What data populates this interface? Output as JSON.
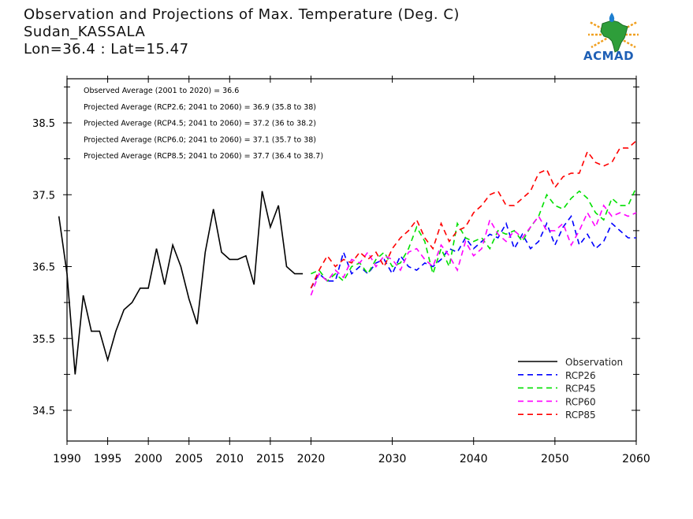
{
  "header": {
    "title": "Observation and Projections of Max. Temperature (Deg. C)",
    "location": "Sudan_KASSALA",
    "coords": "Lon=36.4 : Lat=15.47"
  },
  "logo": {
    "text": "ACMAD"
  },
  "colors": {
    "Observation": "#000000",
    "RCP26": "#0000ff",
    "RCP45": "#00e000",
    "RCP60": "#ff00ff",
    "RCP85": "#ff0000"
  },
  "chart_data": {
    "type": "line",
    "title": "Observation and Projections of Max. Temperature (Deg. C)",
    "xlim": [
      1989,
      2060
    ],
    "ylim": [
      34.1,
      39.3
    ],
    "x_ticks": [
      {
        "value": 1990,
        "label": "1990"
      },
      {
        "value": 1995,
        "label": "1995"
      },
      {
        "value": 2000,
        "label": "2000"
      },
      {
        "value": 2005,
        "label": "2005"
      },
      {
        "value": 2010,
        "label": "2010"
      },
      {
        "value": 2015,
        "label": "2015"
      },
      {
        "value": 2020,
        "label": "2020"
      },
      {
        "value": 2030,
        "label": "2030"
      },
      {
        "value": 2040,
        "label": "2040"
      },
      {
        "value": 2050,
        "label": "2050"
      },
      {
        "value": 2060,
        "label": "2060"
      }
    ],
    "y_ticks": [
      {
        "value": 34.5,
        "label": "34.5"
      },
      {
        "value": 35.5,
        "label": "35.5"
      },
      {
        "value": 36.5,
        "label": "36.5"
      },
      {
        "value": 37.5,
        "label": "37.5"
      },
      {
        "value": 38.5,
        "label": "38.5"
      }
    ],
    "annotations": [
      "Observed Average (2001 to 2020) = 36.6",
      "Projected Average (RCP2.6; 2041 to 2060) = 36.9 (35.8 to 38)",
      "Projected Average (RCP4.5; 2041 to 2060) = 37.2 (36 to 38.2)",
      "Projected Average (RCP6.0; 2041 to 2060) = 37.1 (35.7 to 38)",
      "Projected Average (RCP8.5; 2041 to 2060) = 37.7 (36.4 to 38.7)"
    ],
    "legend_position": "bottom-right",
    "series": [
      {
        "name": "Observation",
        "style": "solid",
        "x": [
          1989,
          1990,
          1991,
          1992,
          1993,
          1994,
          1995,
          1996,
          1997,
          1998,
          1999,
          2000,
          2001,
          2002,
          2003,
          2004,
          2005,
          2006,
          2007,
          2008,
          2009,
          2010,
          2011,
          2012,
          2013,
          2014,
          2015,
          2016,
          2017,
          2018,
          2019
        ],
        "y": [
          37.2,
          36.4,
          35.0,
          36.1,
          35.6,
          35.6,
          35.2,
          35.6,
          35.9,
          36.0,
          36.2,
          36.2,
          36.75,
          36.25,
          36.8,
          36.5,
          36.05,
          35.7,
          36.7,
          37.3,
          36.7,
          36.6,
          36.6,
          36.65,
          36.25,
          37.55,
          37.05,
          37.35,
          36.5,
          36.4,
          36.4
        ]
      },
      {
        "name": "RCP26",
        "style": "dashed",
        "x": [
          2020,
          2021,
          2022,
          2023,
          2024,
          2025,
          2026,
          2027,
          2028,
          2029,
          2030,
          2031,
          2032,
          2033,
          2034,
          2035,
          2036,
          2037,
          2038,
          2039,
          2040,
          2041,
          2042,
          2043,
          2044,
          2045,
          2046,
          2047,
          2048,
          2049,
          2050,
          2051,
          2052,
          2053,
          2054,
          2055,
          2056,
          2057,
          2058,
          2059,
          2060
        ],
        "y": [
          36.2,
          36.4,
          36.3,
          36.3,
          36.7,
          36.4,
          36.5,
          36.4,
          36.55,
          36.6,
          36.4,
          36.65,
          36.5,
          36.45,
          36.55,
          36.5,
          36.6,
          36.75,
          36.7,
          36.9,
          36.75,
          36.85,
          36.95,
          36.9,
          37.1,
          36.75,
          36.95,
          36.75,
          36.85,
          37.1,
          36.8,
          37.05,
          37.2,
          36.8,
          36.95,
          36.75,
          36.85,
          37.1,
          37.0,
          36.9,
          36.9
        ]
      },
      {
        "name": "RCP45",
        "style": "dashed",
        "x": [
          2020,
          2021,
          2022,
          2023,
          2024,
          2025,
          2026,
          2027,
          2028,
          2029,
          2030,
          2031,
          2032,
          2033,
          2034,
          2035,
          2036,
          2037,
          2038,
          2039,
          2040,
          2041,
          2042,
          2043,
          2044,
          2045,
          2046,
          2047,
          2048,
          2049,
          2050,
          2051,
          2052,
          2053,
          2054,
          2055,
          2056,
          2057,
          2058,
          2059,
          2060
        ],
        "y": [
          36.4,
          36.45,
          36.3,
          36.4,
          36.3,
          36.5,
          36.55,
          36.4,
          36.6,
          36.7,
          36.5,
          36.55,
          36.75,
          37.05,
          36.85,
          36.4,
          36.75,
          36.5,
          37.1,
          36.9,
          36.85,
          36.9,
          36.75,
          37.0,
          36.95,
          37.0,
          36.85,
          37.05,
          37.2,
          37.5,
          37.35,
          37.3,
          37.45,
          37.55,
          37.45,
          37.25,
          37.15,
          37.45,
          37.35,
          37.35,
          37.6
        ]
      },
      {
        "name": "RCP60",
        "style": "dashed",
        "x": [
          2020,
          2021,
          2022,
          2023,
          2024,
          2025,
          2026,
          2027,
          2028,
          2029,
          2030,
          2031,
          2032,
          2033,
          2034,
          2035,
          2036,
          2037,
          2038,
          2039,
          2040,
          2041,
          2042,
          2043,
          2044,
          2045,
          2046,
          2047,
          2048,
          2049,
          2050,
          2051,
          2052,
          2053,
          2054,
          2055,
          2056,
          2057,
          2058,
          2059,
          2060
        ],
        "y": [
          36.1,
          36.4,
          36.3,
          36.45,
          36.35,
          36.6,
          36.55,
          36.7,
          36.5,
          36.65,
          36.6,
          36.45,
          36.7,
          36.75,
          36.6,
          36.5,
          36.8,
          36.65,
          36.45,
          36.85,
          36.65,
          36.75,
          37.15,
          36.95,
          36.85,
          37.0,
          36.9,
          37.05,
          37.2,
          37.0,
          37.0,
          37.1,
          36.8,
          37.0,
          37.25,
          37.05,
          37.35,
          37.2,
          37.25,
          37.2,
          37.25
        ]
      },
      {
        "name": "RCP85",
        "style": "dashed",
        "x": [
          2020,
          2021,
          2022,
          2023,
          2024,
          2025,
          2026,
          2027,
          2028,
          2029,
          2030,
          2031,
          2032,
          2033,
          2034,
          2035,
          2036,
          2037,
          2038,
          2039,
          2040,
          2041,
          2042,
          2043,
          2044,
          2045,
          2046,
          2047,
          2048,
          2049,
          2050,
          2051,
          2052,
          2053,
          2054,
          2055,
          2056,
          2057,
          2058,
          2059,
          2060
        ],
        "y": [
          36.2,
          36.45,
          36.65,
          36.5,
          36.6,
          36.55,
          36.7,
          36.6,
          36.7,
          36.5,
          36.75,
          36.9,
          37.0,
          37.15,
          36.9,
          36.75,
          37.1,
          36.85,
          37.0,
          37.05,
          37.25,
          37.35,
          37.5,
          37.55,
          37.35,
          37.35,
          37.45,
          37.55,
          37.8,
          37.85,
          37.6,
          37.75,
          37.8,
          37.8,
          38.1,
          37.95,
          37.9,
          37.95,
          38.15,
          38.15,
          38.25
        ]
      }
    ]
  }
}
